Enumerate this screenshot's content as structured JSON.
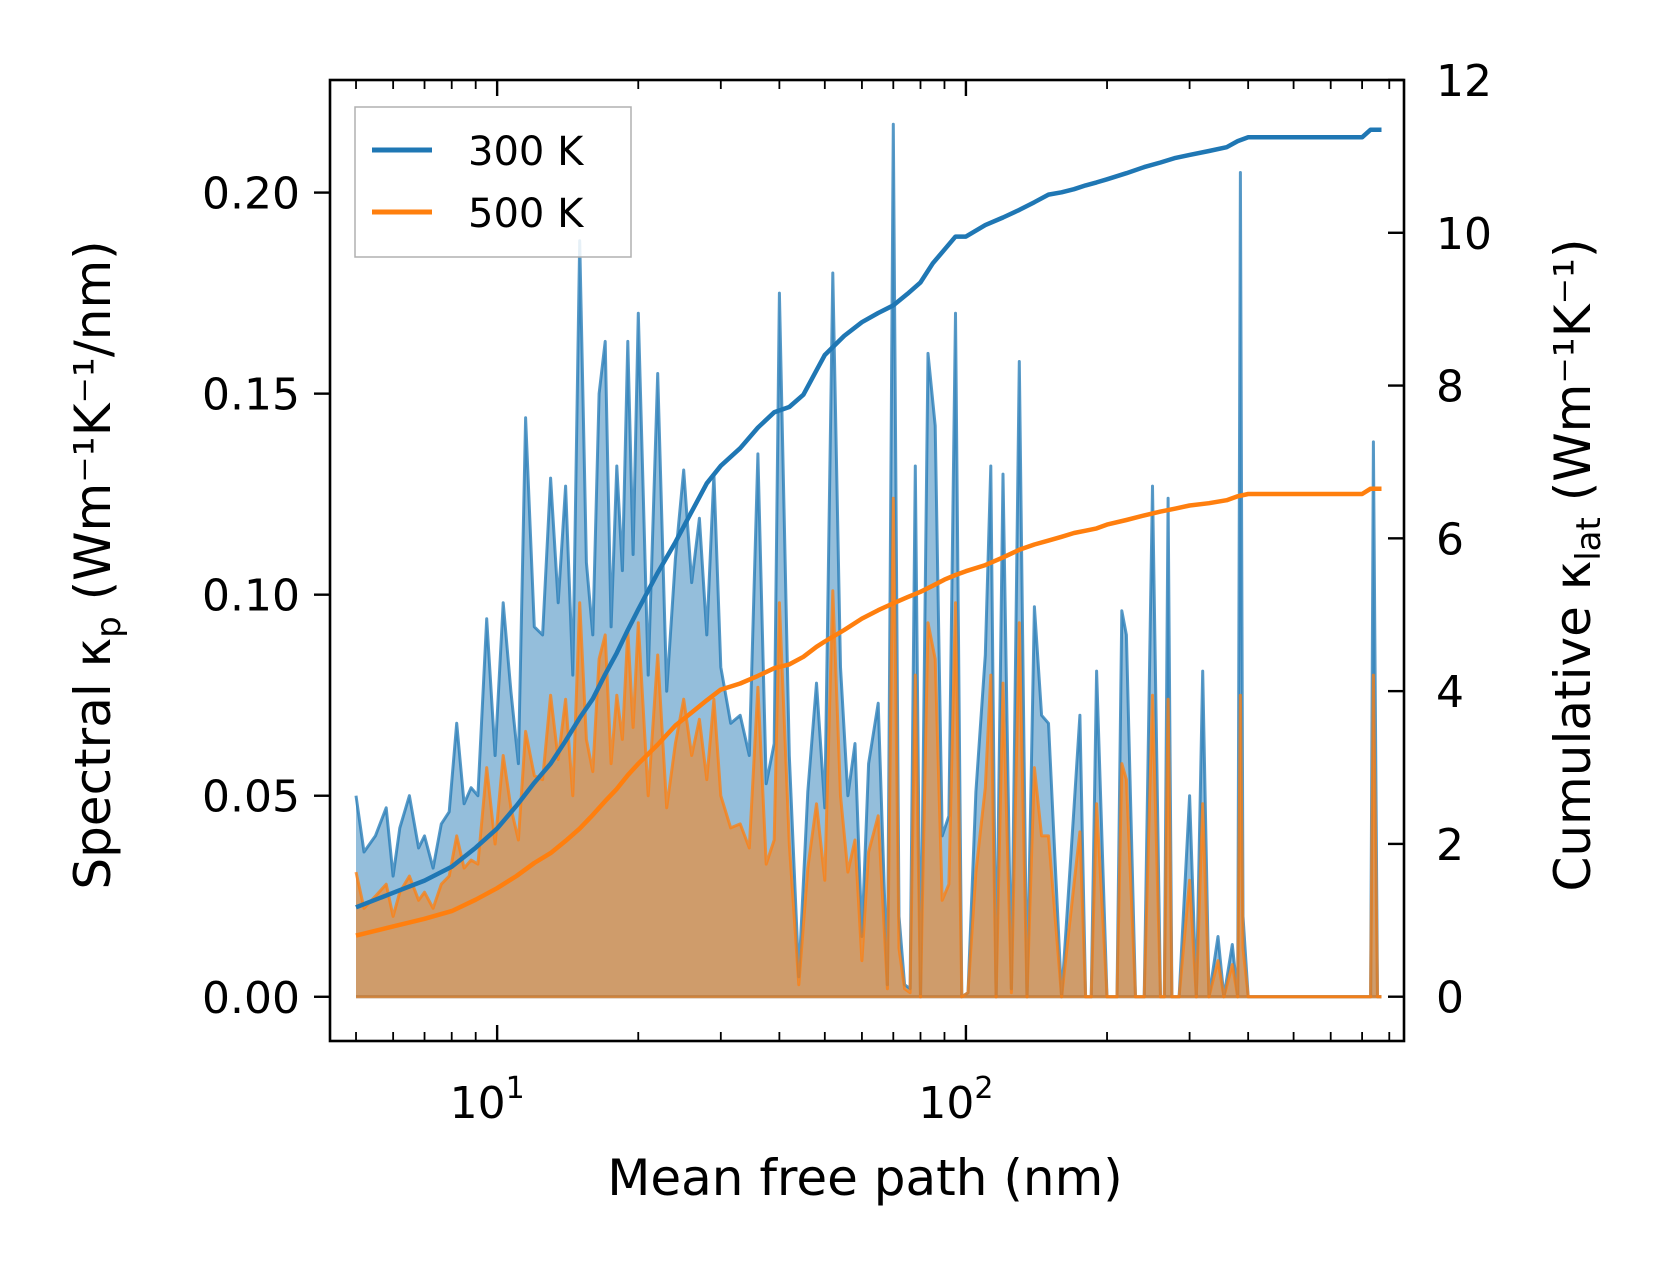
{
  "chart_data": {
    "type": "line",
    "xscale": "log",
    "xlim": [
      4.4,
      860
    ],
    "ylim": [
      -0.011,
      0.228
    ],
    "y2lim": [
      -0.58,
      12.0
    ],
    "xlabel": "Mean free path (nm)",
    "ylabel": {
      "main": "Spectral κ",
      "sub": "p",
      "units": " (Wm⁻¹K⁻¹/nm)"
    },
    "y2label": {
      "main": "Cumulative κ",
      "sub": "lat",
      "units": " (Wm⁻¹K⁻¹)"
    },
    "x_major_ticks": [
      {
        "value": 10,
        "base": "10",
        "exp": "1"
      },
      {
        "value": 100,
        "base": "10",
        "exp": "2"
      }
    ],
    "y_ticks": [
      0.0,
      0.05,
      0.1,
      0.15,
      0.2
    ],
    "y_tick_labels": [
      "0.00",
      "0.05",
      "0.10",
      "0.15",
      "0.20"
    ],
    "y2_ticks": [
      0,
      2,
      4,
      6,
      8,
      10,
      12
    ],
    "y2_tick_labels": [
      "0",
      "2",
      "4",
      "6",
      "8",
      "10",
      "12"
    ],
    "legend": {
      "position": "top-left",
      "entries": [
        {
          "label": "300 K",
          "color": "#1f77b4"
        },
        {
          "label": "500 K",
          "color": "#ff7f0e"
        }
      ]
    },
    "colors": {
      "s300": "#1f77b4",
      "s500": "#ff7f0e",
      "fill300": "#1f77b4",
      "fill500": "#ff7f0e"
    },
    "spectral": [
      {
        "name": "300 K",
        "x": [
          5.0,
          5.2,
          5.5,
          5.8,
          6.0,
          6.2,
          6.5,
          6.8,
          7.0,
          7.3,
          7.6,
          7.9,
          8.2,
          8.5,
          8.8,
          9.1,
          9.5,
          9.9,
          10.3,
          10.7,
          11.1,
          11.5,
          12.0,
          12.5,
          13.0,
          13.5,
          14.0,
          14.5,
          15.0,
          15.5,
          16.0,
          16.5,
          17.0,
          17.5,
          18.0,
          18.5,
          19.0,
          19.5,
          20.0,
          21.0,
          22.0,
          23.0,
          24.0,
          25.0,
          26.0,
          27.0,
          28.0,
          29.0,
          30.0,
          31.5,
          33.0,
          34.5,
          36.0,
          37.5,
          39.0,
          40.0,
          42.0,
          44.0,
          46.0,
          48.0,
          50.0,
          52.0,
          54.0,
          56.0,
          58.0,
          60.0,
          62.0,
          65.0,
          68.0,
          70.0,
          72.0,
          74.0,
          76.0,
          78.0,
          80.0,
          83.0,
          86.0,
          89.0,
          92.0,
          95.0,
          98.0,
          101.0,
          105.0,
          110.0,
          113.0,
          116.0,
          120.0,
          125.0,
          130.0,
          135.0,
          140.0,
          145.0,
          150.0,
          160.0,
          170.0,
          175.0,
          180.0,
          185.0,
          190.0,
          200.0,
          205.0,
          210.0,
          215.0,
          220.0,
          230.0,
          240.0,
          250.0,
          260.0,
          265.0,
          270.0,
          275.0,
          285.0,
          300.0,
          310.0,
          320.0,
          330.0,
          345.0,
          355.0,
          370.0,
          380.0,
          385.0,
          390.0,
          400.0,
          420.0,
          440.0,
          500.0,
          600.0,
          700.0,
          720.0,
          730.0,
          740.0,
          755.0,
          770.0
        ],
        "y": [
          0.05,
          0.036,
          0.04,
          0.047,
          0.03,
          0.042,
          0.05,
          0.037,
          0.04,
          0.032,
          0.043,
          0.046,
          0.068,
          0.048,
          0.052,
          0.05,
          0.094,
          0.06,
          0.098,
          0.076,
          0.058,
          0.144,
          0.092,
          0.09,
          0.129,
          0.098,
          0.127,
          0.08,
          0.188,
          0.108,
          0.09,
          0.15,
          0.163,
          0.092,
          0.132,
          0.106,
          0.163,
          0.11,
          0.17,
          0.08,
          0.155,
          0.076,
          0.109,
          0.131,
          0.103,
          0.119,
          0.09,
          0.13,
          0.082,
          0.068,
          0.07,
          0.06,
          0.135,
          0.053,
          0.063,
          0.175,
          0.06,
          0.005,
          0.051,
          0.078,
          0.047,
          0.18,
          0.082,
          0.05,
          0.063,
          0.015,
          0.058,
          0.073,
          0.003,
          0.217,
          0.02,
          0.003,
          0.002,
          0.132,
          0.0,
          0.16,
          0.142,
          0.04,
          0.045,
          0.17,
          0.0,
          0.001,
          0.051,
          0.085,
          0.132,
          0.0,
          0.13,
          0.002,
          0.158,
          0.0,
          0.097,
          0.07,
          0.068,
          0.0,
          0.047,
          0.07,
          0.0,
          0.0,
          0.081,
          0.0,
          0.0,
          0.0,
          0.096,
          0.09,
          0.0,
          0.0,
          0.127,
          0.0,
          0.0,
          0.124,
          0.0,
          0.0,
          0.05,
          0.0,
          0.081,
          0.0,
          0.015,
          0.0,
          0.013,
          0.0,
          0.205,
          0.02,
          0.0,
          0.0,
          0.0,
          0.0,
          0.0,
          0.0,
          0.0,
          0.0,
          0.138,
          0.0,
          0.0
        ]
      },
      {
        "name": "500 K",
        "x": [
          5.0,
          5.2,
          5.5,
          5.8,
          6.0,
          6.2,
          6.5,
          6.8,
          7.0,
          7.3,
          7.6,
          7.9,
          8.2,
          8.5,
          8.8,
          9.1,
          9.5,
          9.9,
          10.3,
          10.7,
          11.1,
          11.5,
          12.0,
          12.5,
          13.0,
          13.5,
          14.0,
          14.5,
          15.0,
          15.5,
          16.0,
          16.5,
          17.0,
          17.5,
          18.0,
          18.5,
          19.0,
          19.5,
          20.0,
          21.0,
          22.0,
          23.0,
          24.0,
          25.0,
          26.0,
          27.0,
          28.0,
          29.0,
          30.0,
          31.5,
          33.0,
          34.5,
          36.0,
          37.5,
          39.0,
          40.0,
          42.0,
          44.0,
          46.0,
          48.0,
          50.0,
          52.0,
          54.0,
          56.0,
          58.0,
          60.0,
          62.0,
          65.0,
          68.0,
          70.0,
          72.0,
          74.0,
          76.0,
          78.0,
          80.0,
          83.0,
          86.0,
          89.0,
          92.0,
          95.0,
          98.0,
          101.0,
          105.0,
          110.0,
          113.0,
          116.0,
          120.0,
          125.0,
          130.0,
          135.0,
          140.0,
          145.0,
          150.0,
          160.0,
          170.0,
          175.0,
          180.0,
          185.0,
          190.0,
          200.0,
          205.0,
          210.0,
          215.0,
          220.0,
          230.0,
          240.0,
          250.0,
          260.0,
          265.0,
          270.0,
          275.0,
          285.0,
          300.0,
          310.0,
          320.0,
          330.0,
          345.0,
          355.0,
          370.0,
          380.0,
          385.0,
          390.0,
          400.0,
          420.0,
          440.0,
          500.0,
          600.0,
          700.0,
          720.0,
          730.0,
          740.0,
          755.0,
          770.0
        ],
        "y": [
          0.031,
          0.022,
          0.025,
          0.028,
          0.02,
          0.026,
          0.03,
          0.024,
          0.026,
          0.022,
          0.028,
          0.03,
          0.04,
          0.032,
          0.034,
          0.033,
          0.057,
          0.038,
          0.06,
          0.047,
          0.039,
          0.066,
          0.055,
          0.054,
          0.075,
          0.059,
          0.074,
          0.05,
          0.098,
          0.064,
          0.056,
          0.084,
          0.09,
          0.058,
          0.075,
          0.064,
          0.091,
          0.067,
          0.093,
          0.05,
          0.085,
          0.047,
          0.063,
          0.074,
          0.06,
          0.069,
          0.054,
          0.074,
          0.05,
          0.042,
          0.043,
          0.037,
          0.077,
          0.033,
          0.039,
          0.098,
          0.038,
          0.003,
          0.032,
          0.048,
          0.029,
          0.101,
          0.05,
          0.031,
          0.039,
          0.009,
          0.036,
          0.045,
          0.002,
          0.124,
          0.012,
          0.002,
          0.001,
          0.08,
          0.0,
          0.093,
          0.084,
          0.024,
          0.028,
          0.098,
          0.0,
          0.001,
          0.031,
          0.052,
          0.08,
          0.0,
          0.078,
          0.001,
          0.093,
          0.0,
          0.057,
          0.04,
          0.04,
          0.0,
          0.028,
          0.041,
          0.0,
          0.0,
          0.048,
          0.0,
          0.0,
          0.0,
          0.058,
          0.054,
          0.0,
          0.0,
          0.075,
          0.0,
          0.0,
          0.074,
          0.0,
          0.0,
          0.029,
          0.0,
          0.048,
          0.0,
          0.009,
          0.0,
          0.008,
          0.0,
          0.075,
          0.012,
          0.0,
          0.0,
          0.0,
          0.0,
          0.0,
          0.0,
          0.0,
          0.0,
          0.08,
          0.0,
          0.0
        ]
      }
    ],
    "cumulative": [
      {
        "name": "300 K",
        "x": [
          5.0,
          6.0,
          7.0,
          8.0,
          9.0,
          10.0,
          11.0,
          12.0,
          13.0,
          14.0,
          15.0,
          16.0,
          17.0,
          18.0,
          19.0,
          20.0,
          22.0,
          24.0,
          26.0,
          28.0,
          30.0,
          33.0,
          36.0,
          39.0,
          42.0,
          45.0,
          48.0,
          50.0,
          55.0,
          60.0,
          65.0,
          70.0,
          75.0,
          80.0,
          85.0,
          90.0,
          95.0,
          100.0,
          110.0,
          120.0,
          130.0,
          140.0,
          150.0,
          160.0,
          170.0,
          180.0,
          190.0,
          200.0,
          220.0,
          240.0,
          260.0,
          280.0,
          300.0,
          330.0,
          360.0,
          380.0,
          400.0,
          450.0,
          500.0,
          600.0,
          700.0,
          730.0,
          770.0
        ],
        "y": [
          1.17,
          1.36,
          1.52,
          1.7,
          1.95,
          2.2,
          2.5,
          2.8,
          3.05,
          3.35,
          3.65,
          3.9,
          4.22,
          4.5,
          4.8,
          5.07,
          5.55,
          5.95,
          6.35,
          6.72,
          6.95,
          7.18,
          7.45,
          7.65,
          7.72,
          7.88,
          8.2,
          8.4,
          8.65,
          8.83,
          8.95,
          9.05,
          9.2,
          9.35,
          9.6,
          9.78,
          9.95,
          9.95,
          10.1,
          10.2,
          10.3,
          10.4,
          10.5,
          10.53,
          10.57,
          10.62,
          10.66,
          10.7,
          10.78,
          10.86,
          10.92,
          10.98,
          11.02,
          11.07,
          11.12,
          11.2,
          11.25,
          11.25,
          11.25,
          11.25,
          11.25,
          11.35,
          11.35
        ]
      },
      {
        "name": "500 K",
        "x": [
          5.0,
          6.0,
          7.0,
          8.0,
          9.0,
          10.0,
          11.0,
          12.0,
          13.0,
          14.0,
          15.0,
          16.0,
          17.0,
          18.0,
          19.0,
          20.0,
          22.0,
          24.0,
          26.0,
          28.0,
          30.0,
          33.0,
          36.0,
          39.0,
          42.0,
          45.0,
          48.0,
          50.0,
          55.0,
          60.0,
          65.0,
          70.0,
          75.0,
          80.0,
          85.0,
          90.0,
          95.0,
          100.0,
          110.0,
          120.0,
          130.0,
          140.0,
          150.0,
          160.0,
          170.0,
          180.0,
          190.0,
          200.0,
          220.0,
          240.0,
          260.0,
          280.0,
          300.0,
          330.0,
          360.0,
          380.0,
          400.0,
          450.0,
          500.0,
          600.0,
          700.0,
          730.0,
          770.0
        ],
        "y": [
          0.8,
          0.92,
          1.02,
          1.12,
          1.27,
          1.42,
          1.58,
          1.75,
          1.88,
          2.04,
          2.2,
          2.38,
          2.56,
          2.72,
          2.9,
          3.05,
          3.3,
          3.55,
          3.72,
          3.88,
          4.02,
          4.1,
          4.2,
          4.3,
          4.35,
          4.45,
          4.58,
          4.65,
          4.8,
          4.95,
          5.06,
          5.15,
          5.23,
          5.3,
          5.38,
          5.46,
          5.52,
          5.57,
          5.65,
          5.75,
          5.85,
          5.92,
          5.97,
          6.02,
          6.07,
          6.1,
          6.13,
          6.18,
          6.24,
          6.3,
          6.35,
          6.39,
          6.43,
          6.46,
          6.5,
          6.55,
          6.58,
          6.58,
          6.58,
          6.58,
          6.58,
          6.65,
          6.65
        ]
      }
    ]
  }
}
